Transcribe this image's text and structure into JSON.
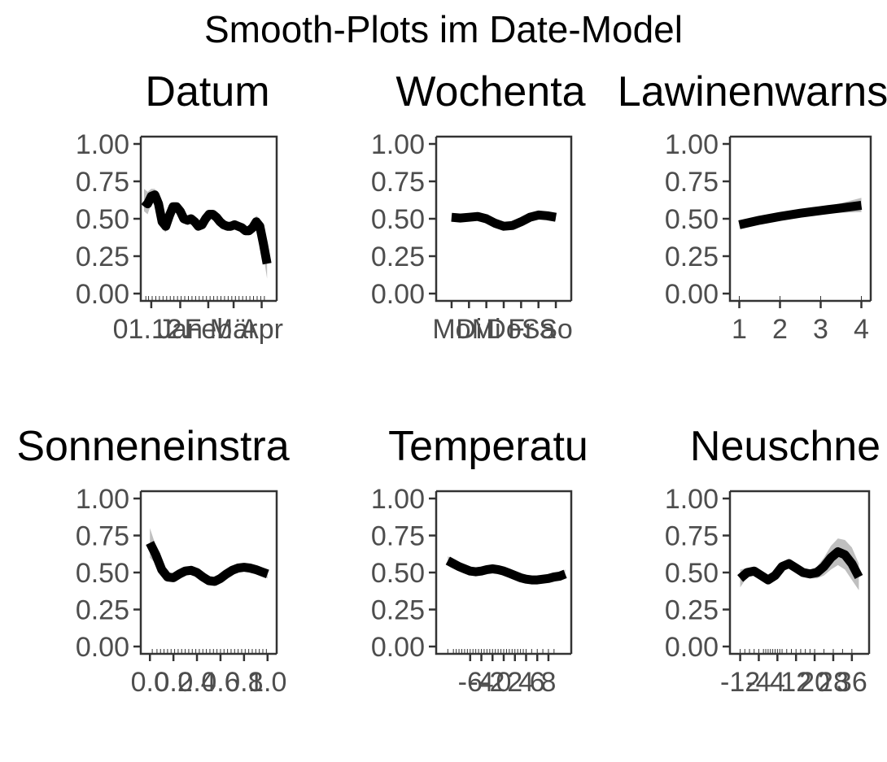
{
  "figure": {
    "title": "Smooth-Plots im Date-Model"
  },
  "chart_data": [
    {
      "type": "line",
      "title": "Datum",
      "xlabel": "",
      "ylabel": "",
      "ylim": [
        0,
        1
      ],
      "y_ticks": [
        "0.00",
        "0.25",
        "0.50",
        "0.75",
        "1.00"
      ],
      "x_ticks": [
        "01.12.",
        "Jan",
        "Feb",
        "Mär",
        "Apr"
      ],
      "xlim": [
        0,
        143
      ],
      "x_tick_values": [
        8,
        40,
        71,
        99,
        130
      ],
      "x": [
        0,
        4,
        8,
        12,
        16,
        20,
        24,
        28,
        32,
        36,
        40,
        44,
        48,
        52,
        56,
        60,
        64,
        68,
        72,
        76,
        80,
        84,
        88,
        92,
        96,
        100,
        104,
        108,
        112,
        116,
        120,
        124,
        128,
        132,
        136
      ],
      "values": [
        0.62,
        0.6,
        0.65,
        0.66,
        0.6,
        0.48,
        0.45,
        0.52,
        0.58,
        0.58,
        0.55,
        0.5,
        0.49,
        0.5,
        0.48,
        0.45,
        0.46,
        0.5,
        0.53,
        0.53,
        0.51,
        0.48,
        0.46,
        0.45,
        0.45,
        0.46,
        0.45,
        0.44,
        0.42,
        0.42,
        0.44,
        0.48,
        0.45,
        0.33,
        0.2
      ],
      "lower": [
        0.55,
        0.53,
        0.6,
        0.62,
        0.55,
        0.43,
        0.41,
        0.48,
        0.55,
        0.55,
        0.52,
        0.47,
        0.46,
        0.47,
        0.45,
        0.42,
        0.43,
        0.47,
        0.5,
        0.5,
        0.48,
        0.45,
        0.43,
        0.42,
        0.42,
        0.43,
        0.42,
        0.41,
        0.39,
        0.39,
        0.41,
        0.44,
        0.4,
        0.25,
        0.1
      ],
      "upper": [
        0.7,
        0.68,
        0.7,
        0.7,
        0.65,
        0.53,
        0.5,
        0.56,
        0.61,
        0.61,
        0.58,
        0.53,
        0.52,
        0.53,
        0.51,
        0.48,
        0.49,
        0.53,
        0.56,
        0.56,
        0.54,
        0.51,
        0.49,
        0.48,
        0.48,
        0.49,
        0.48,
        0.47,
        0.45,
        0.45,
        0.47,
        0.52,
        0.5,
        0.41,
        0.3
      ],
      "rug": [
        2,
        5,
        9,
        13,
        17,
        21,
        25,
        29,
        33,
        37,
        41,
        45,
        49,
        53,
        57,
        61,
        65,
        69,
        73,
        77,
        81,
        85,
        89,
        93,
        97,
        101,
        105,
        109,
        113,
        117,
        121,
        125,
        129,
        133
      ]
    },
    {
      "type": "line",
      "title": "Wochenta",
      "xlabel": "",
      "ylabel": "",
      "ylim": [
        0,
        1
      ],
      "y_ticks": [
        "0.00",
        "0.25",
        "0.50",
        "0.75",
        "1.00"
      ],
      "x_ticks": [
        "Mo",
        "Di",
        "Mi",
        "Do",
        "Fr",
        "Sa",
        "So"
      ],
      "xlim": [
        0.3,
        7.7
      ],
      "x_tick_values": [
        1,
        2,
        3,
        4,
        5,
        6,
        7
      ],
      "x": [
        1,
        1.5,
        2,
        2.5,
        3,
        3.5,
        4,
        4.5,
        5,
        5.5,
        6,
        6.5,
        7
      ],
      "values": [
        0.51,
        0.505,
        0.51,
        0.515,
        0.5,
        0.47,
        0.45,
        0.455,
        0.48,
        0.51,
        0.525,
        0.52,
        0.51
      ],
      "lower": [
        0.495,
        0.49,
        0.495,
        0.5,
        0.485,
        0.455,
        0.435,
        0.44,
        0.465,
        0.495,
        0.51,
        0.505,
        0.49
      ],
      "upper": [
        0.525,
        0.52,
        0.525,
        0.53,
        0.515,
        0.485,
        0.465,
        0.47,
        0.495,
        0.525,
        0.54,
        0.535,
        0.53
      ],
      "rug": []
    },
    {
      "type": "line",
      "title": "Lawinenwarns",
      "xlabel": "",
      "ylabel": "",
      "ylim": [
        0,
        1
      ],
      "y_ticks": [
        "0.00",
        "0.25",
        "0.50",
        "0.75",
        "1.00"
      ],
      "x_ticks": [
        "1",
        "2",
        "3",
        "4"
      ],
      "xlim": [
        0.85,
        4.15
      ],
      "x_tick_values": [
        1,
        2,
        3,
        4
      ],
      "x": [
        1,
        1.5,
        2,
        2.5,
        3,
        3.5,
        4
      ],
      "values": [
        0.46,
        0.49,
        0.515,
        0.537,
        0.555,
        0.572,
        0.59
      ],
      "lower": [
        0.45,
        0.48,
        0.505,
        0.525,
        0.535,
        0.54,
        0.545
      ],
      "upper": [
        0.47,
        0.5,
        0.525,
        0.55,
        0.575,
        0.605,
        0.64
      ],
      "rug": [
        1,
        2,
        3,
        4
      ]
    },
    {
      "type": "line",
      "title": "Sonneneinstra",
      "xlabel": "",
      "ylabel": "",
      "ylim": [
        0,
        1
      ],
      "y_ticks": [
        "0.00",
        "0.25",
        "0.50",
        "0.75",
        "1.00"
      ],
      "x_ticks": [
        "0.0",
        "0.2",
        "0.4",
        "0.6",
        "0.8",
        "1.0"
      ],
      "xlim": [
        -0.05,
        1.05
      ],
      "x_tick_values": [
        0,
        0.2,
        0.4,
        0.6,
        0.8,
        1.0
      ],
      "x": [
        0,
        0.05,
        0.1,
        0.15,
        0.2,
        0.25,
        0.3,
        0.35,
        0.4,
        0.45,
        0.5,
        0.55,
        0.6,
        0.65,
        0.7,
        0.75,
        0.8,
        0.85,
        0.9,
        0.95,
        1.0
      ],
      "values": [
        0.7,
        0.62,
        0.52,
        0.47,
        0.465,
        0.49,
        0.51,
        0.515,
        0.5,
        0.47,
        0.445,
        0.44,
        0.46,
        0.49,
        0.515,
        0.53,
        0.535,
        0.53,
        0.52,
        0.505,
        0.49
      ],
      "lower": [
        0.6,
        0.56,
        0.49,
        0.45,
        0.445,
        0.47,
        0.49,
        0.495,
        0.48,
        0.45,
        0.425,
        0.42,
        0.44,
        0.47,
        0.495,
        0.51,
        0.515,
        0.51,
        0.5,
        0.485,
        0.46
      ],
      "upper": [
        0.8,
        0.68,
        0.55,
        0.49,
        0.485,
        0.51,
        0.53,
        0.535,
        0.52,
        0.49,
        0.465,
        0.46,
        0.48,
        0.51,
        0.535,
        0.55,
        0.555,
        0.55,
        0.54,
        0.525,
        0.52
      ],
      "rug": [
        0.02,
        0.06,
        0.09,
        0.12,
        0.15,
        0.18,
        0.21,
        0.24,
        0.27,
        0.3,
        0.33,
        0.36,
        0.39,
        0.42,
        0.45,
        0.48,
        0.51,
        0.54,
        0.57,
        0.6,
        0.63,
        0.66,
        0.69,
        0.72,
        0.75,
        0.78,
        0.81,
        0.84,
        0.87,
        0.9,
        0.93,
        0.96,
        0.99
      ]
    },
    {
      "type": "line",
      "title": "Temperatu",
      "xlabel": "",
      "ylabel": "",
      "ylim": [
        0,
        1
      ],
      "y_ticks": [
        "0.00",
        "0.25",
        "0.50",
        "0.75",
        "1.00"
      ],
      "x_ticks": [
        "-6",
        "-4",
        "-2",
        "0",
        "2",
        "4",
        "6",
        "8"
      ],
      "xlim": [
        -11.5,
        11.5
      ],
      "x_tick_values": [
        -6,
        -4,
        -2,
        0,
        2,
        4,
        6,
        8
      ],
      "x": [
        -10,
        -9,
        -8,
        -7,
        -6,
        -5,
        -4,
        -3,
        -2,
        -1,
        0,
        1,
        2,
        3,
        4,
        5,
        6,
        7,
        8,
        9,
        10,
        11
      ],
      "values": [
        0.58,
        0.56,
        0.54,
        0.525,
        0.51,
        0.505,
        0.51,
        0.52,
        0.525,
        0.52,
        0.51,
        0.495,
        0.48,
        0.465,
        0.455,
        0.45,
        0.45,
        0.455,
        0.46,
        0.47,
        0.475,
        0.49
      ],
      "lower": [
        0.55,
        0.54,
        0.52,
        0.505,
        0.495,
        0.49,
        0.495,
        0.505,
        0.51,
        0.505,
        0.495,
        0.48,
        0.465,
        0.45,
        0.44,
        0.435,
        0.435,
        0.44,
        0.44,
        0.45,
        0.45,
        0.46
      ],
      "upper": [
        0.61,
        0.58,
        0.56,
        0.545,
        0.525,
        0.52,
        0.525,
        0.535,
        0.54,
        0.535,
        0.525,
        0.51,
        0.495,
        0.48,
        0.47,
        0.465,
        0.465,
        0.47,
        0.48,
        0.49,
        0.5,
        0.52
      ],
      "rug": [
        -10,
        -9,
        -8.5,
        -8,
        -7.5,
        -7,
        -6.5,
        -6,
        -5.5,
        -5,
        -4.5,
        -4,
        -3.5,
        -3,
        -2.5,
        -2,
        -1.5,
        -1,
        -0.5,
        0,
        0.5,
        1,
        1.5,
        2,
        2.5,
        3,
        3.5,
        4,
        5,
        6,
        7,
        8,
        9
      ]
    },
    {
      "type": "line",
      "title": "Neuschne",
      "xlabel": "",
      "ylabel": "",
      "ylim": [
        0,
        1
      ],
      "y_ticks": [
        "0.00",
        "0.25",
        "0.50",
        "0.75",
        "1.00"
      ],
      "x_ticks": [
        "-12",
        "-4",
        "4",
        "12",
        "20",
        "28",
        "36"
      ],
      "xlim": [
        -15,
        42
      ],
      "x_tick_values": [
        -12,
        -4,
        4,
        12,
        20,
        28,
        36
      ],
      "x": [
        -12,
        -9,
        -6,
        -3,
        0,
        3,
        6,
        9,
        12,
        15,
        18,
        21,
        24,
        27,
        30,
        33,
        36,
        39
      ],
      "values": [
        0.46,
        0.5,
        0.51,
        0.48,
        0.45,
        0.48,
        0.54,
        0.56,
        0.53,
        0.5,
        0.49,
        0.5,
        0.54,
        0.6,
        0.64,
        0.62,
        0.56,
        0.47
      ],
      "lower": [
        0.4,
        0.47,
        0.48,
        0.46,
        0.43,
        0.46,
        0.51,
        0.53,
        0.5,
        0.47,
        0.46,
        0.46,
        0.48,
        0.52,
        0.55,
        0.52,
        0.45,
        0.38
      ],
      "upper": [
        0.52,
        0.53,
        0.54,
        0.5,
        0.47,
        0.5,
        0.57,
        0.59,
        0.56,
        0.53,
        0.52,
        0.54,
        0.6,
        0.68,
        0.73,
        0.72,
        0.67,
        0.56
      ],
      "rug": [
        -12,
        -10,
        -8,
        -6,
        -4,
        -2,
        -1,
        0,
        1,
        2,
        3,
        4,
        5,
        6,
        8,
        10,
        12,
        14,
        16,
        18,
        20,
        24,
        28,
        32,
        36
      ]
    }
  ]
}
